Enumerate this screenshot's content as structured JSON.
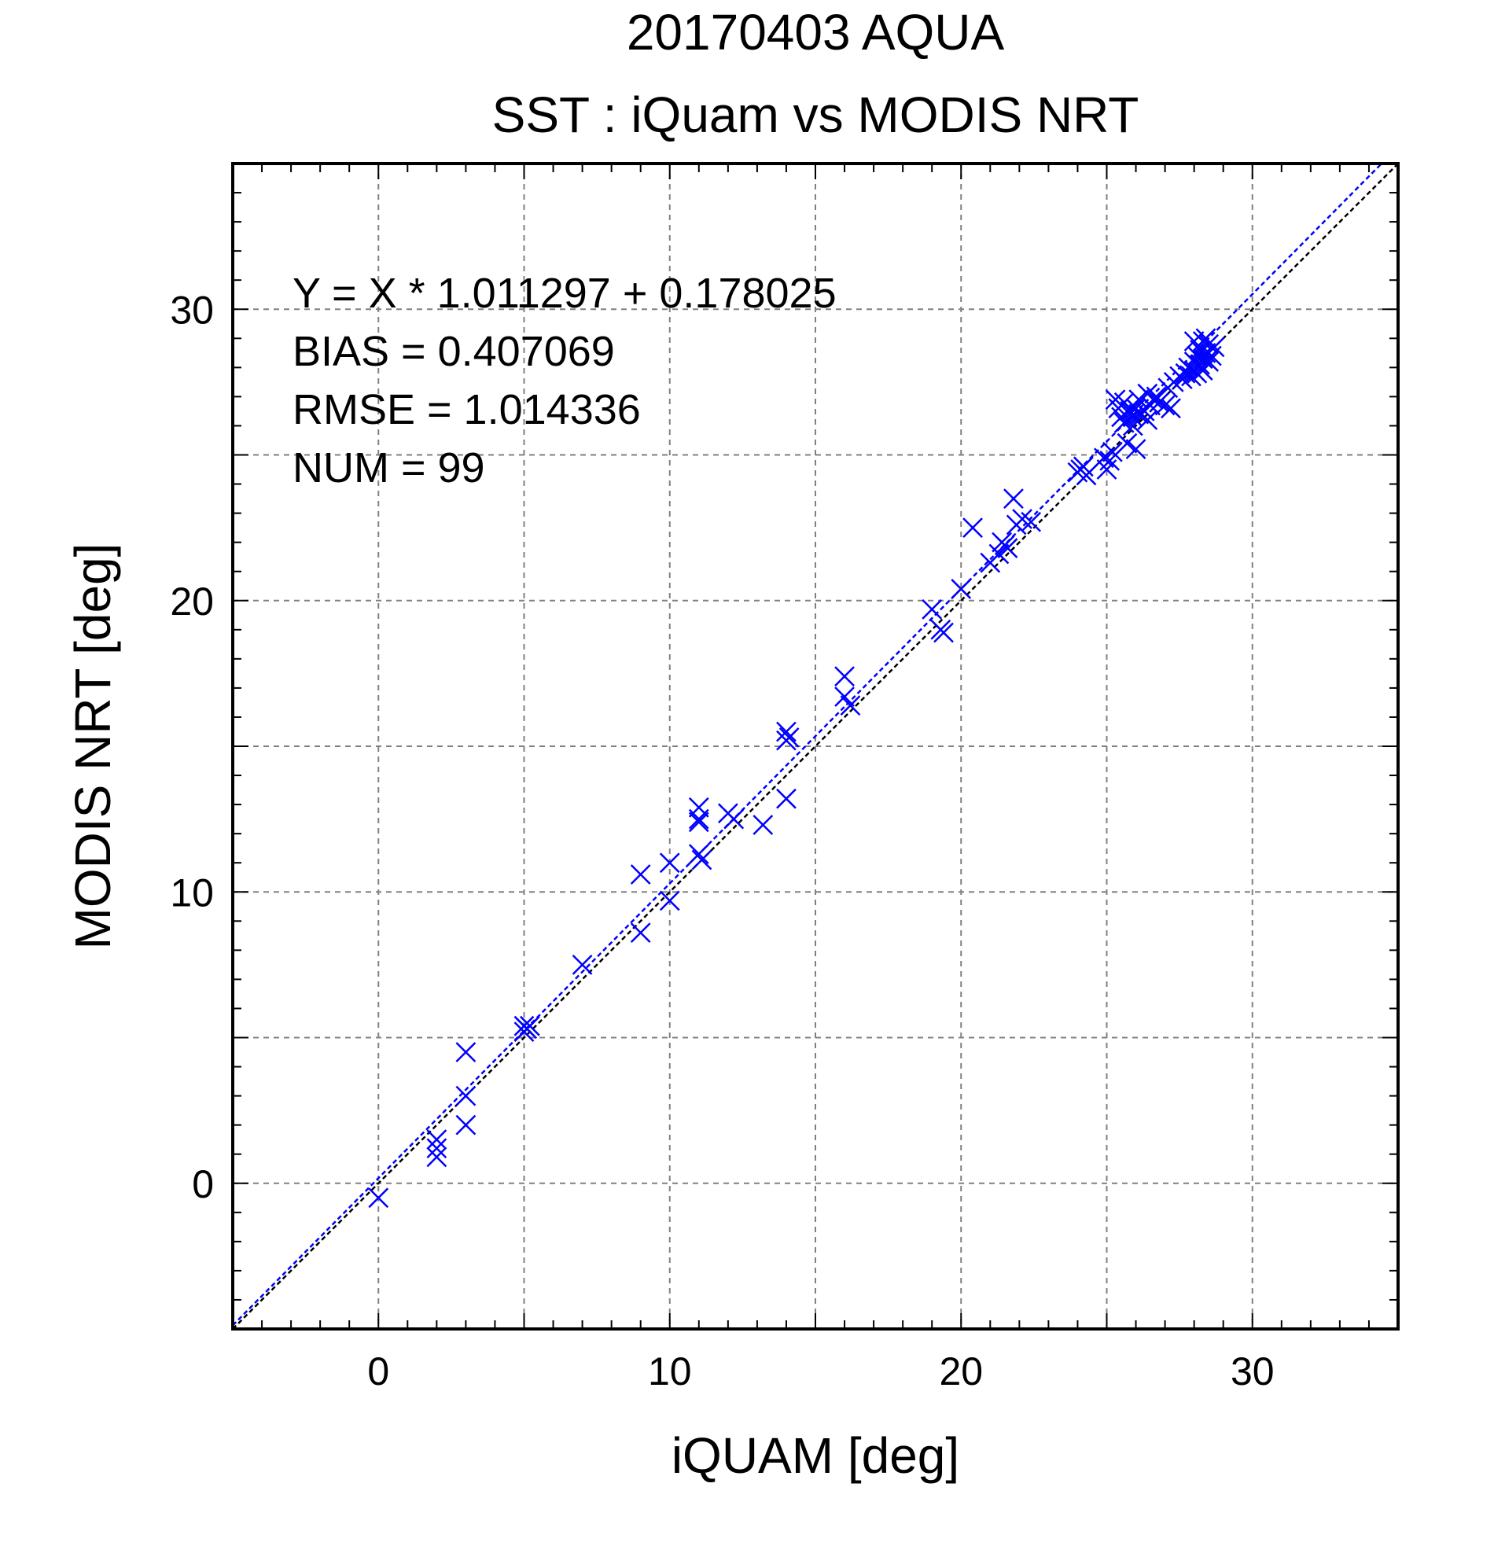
{
  "chart_data": {
    "type": "scatter",
    "title": "20170403 AQUA",
    "subtitle": "SST : iQuam vs MODIS NRT",
    "xlabel": "iQUAM [deg]",
    "ylabel": "MODIS NRT [deg]",
    "xlim": [
      -5,
      35
    ],
    "ylim": [
      -5,
      35
    ],
    "x_ticks": [
      "0",
      "10",
      "20",
      "30"
    ],
    "y_ticks": [
      "0",
      "10",
      "20",
      "30"
    ],
    "x_tick_values": [
      0,
      10,
      20,
      30
    ],
    "y_tick_values": [
      0,
      10,
      20,
      30
    ],
    "grid_values": [
      0,
      5,
      10,
      15,
      20,
      25,
      30
    ],
    "grid": true,
    "stats": {
      "equation": "Y = X * 1.011297 + 0.178025",
      "bias": "BIAS = 0.407069",
      "rmse": "RMSE = 1.014336",
      "num": "NUM = 99"
    },
    "fit_line": {
      "slope": 1.011297,
      "intercept": 0.178025,
      "color": "#0000ff"
    },
    "identity_line": {
      "slope": 1,
      "intercept": 0,
      "color": "#000000"
    },
    "marker_color": "#0000ff",
    "points": [
      [
        0.0,
        -0.5
      ],
      [
        2.0,
        1.5
      ],
      [
        2.0,
        1.2
      ],
      [
        2.0,
        0.9
      ],
      [
        3.0,
        4.5
      ],
      [
        3.0,
        3.0
      ],
      [
        3.0,
        2.0
      ],
      [
        5.0,
        5.4
      ],
      [
        5.1,
        5.3
      ],
      [
        5.2,
        5.4
      ],
      [
        7.0,
        7.5
      ],
      [
        9.0,
        10.6
      ],
      [
        9.0,
        8.6
      ],
      [
        10.0,
        11.0
      ],
      [
        10.0,
        9.7
      ],
      [
        11.0,
        12.9
      ],
      [
        11.0,
        12.4
      ],
      [
        11.0,
        11.3
      ],
      [
        11.1,
        11.1
      ],
      [
        12.0,
        12.7
      ],
      [
        12.2,
        12.5
      ],
      [
        13.2,
        12.3
      ],
      [
        14.0,
        15.5
      ],
      [
        14.0,
        15.2
      ],
      [
        14.0,
        13.2
      ],
      [
        16.0,
        17.4
      ],
      [
        16.0,
        16.7
      ],
      [
        16.2,
        16.4
      ],
      [
        19.0,
        19.7
      ],
      [
        19.3,
        19.0
      ],
      [
        19.4,
        18.9
      ],
      [
        20.0,
        20.4
      ],
      [
        20.4,
        22.5
      ],
      [
        21.0,
        21.3
      ],
      [
        21.3,
        21.6
      ],
      [
        21.4,
        22.0
      ],
      [
        21.6,
        21.8
      ],
      [
        21.8,
        23.5
      ],
      [
        21.9,
        22.6
      ],
      [
        22.1,
        22.8
      ],
      [
        22.4,
        22.7
      ],
      [
        24.0,
        24.4
      ],
      [
        24.1,
        24.5
      ],
      [
        24.2,
        24.6
      ],
      [
        24.3,
        24.3
      ],
      [
        25.0,
        24.5
      ],
      [
        25.1,
        24.8
      ],
      [
        25.2,
        25.1
      ],
      [
        25.4,
        26.6
      ],
      [
        25.5,
        26.3
      ],
      [
        25.6,
        26.8
      ],
      [
        25.6,
        26.1
      ],
      [
        25.7,
        25.4
      ],
      [
        25.8,
        26.5
      ],
      [
        25.9,
        26.3
      ],
      [
        25.9,
        26.0
      ],
      [
        26.0,
        25.2
      ],
      [
        26.0,
        26.6
      ],
      [
        26.1,
        26.4
      ],
      [
        26.1,
        26.9
      ],
      [
        26.2,
        26.4
      ],
      [
        26.3,
        26.5
      ],
      [
        26.4,
        26.2
      ],
      [
        26.5,
        26.7
      ],
      [
        26.6,
        26.9
      ],
      [
        26.7,
        27.0
      ],
      [
        26.8,
        26.8
      ],
      [
        27.0,
        26.7
      ],
      [
        27.1,
        27.3
      ],
      [
        27.2,
        26.6
      ],
      [
        27.3,
        27.5
      ],
      [
        27.5,
        27.7
      ],
      [
        27.6,
        27.6
      ],
      [
        27.7,
        27.8
      ],
      [
        27.8,
        28.0
      ],
      [
        27.9,
        27.7
      ],
      [
        28.0,
        27.9
      ],
      [
        28.0,
        28.2
      ],
      [
        28.1,
        28.4
      ],
      [
        28.1,
        27.8
      ],
      [
        28.2,
        28.6
      ],
      [
        28.2,
        28.1
      ],
      [
        28.3,
        28.9
      ],
      [
        28.3,
        28.3
      ],
      [
        28.4,
        29.0
      ],
      [
        28.4,
        28.5
      ],
      [
        28.5,
        28.2
      ],
      [
        28.5,
        28.8
      ],
      [
        28.6,
        28.4
      ],
      [
        28.7,
        28.7
      ],
      [
        28.0,
        28.9
      ],
      [
        28.3,
        27.9
      ],
      [
        26.4,
        27.1
      ],
      [
        25.3,
        26.9
      ],
      [
        24.9,
        24.9
      ],
      [
        21.5,
        21.9
      ],
      [
        14.1,
        15.3
      ],
      [
        11.0,
        12.5
      ],
      [
        5.0,
        5.2
      ]
    ]
  }
}
